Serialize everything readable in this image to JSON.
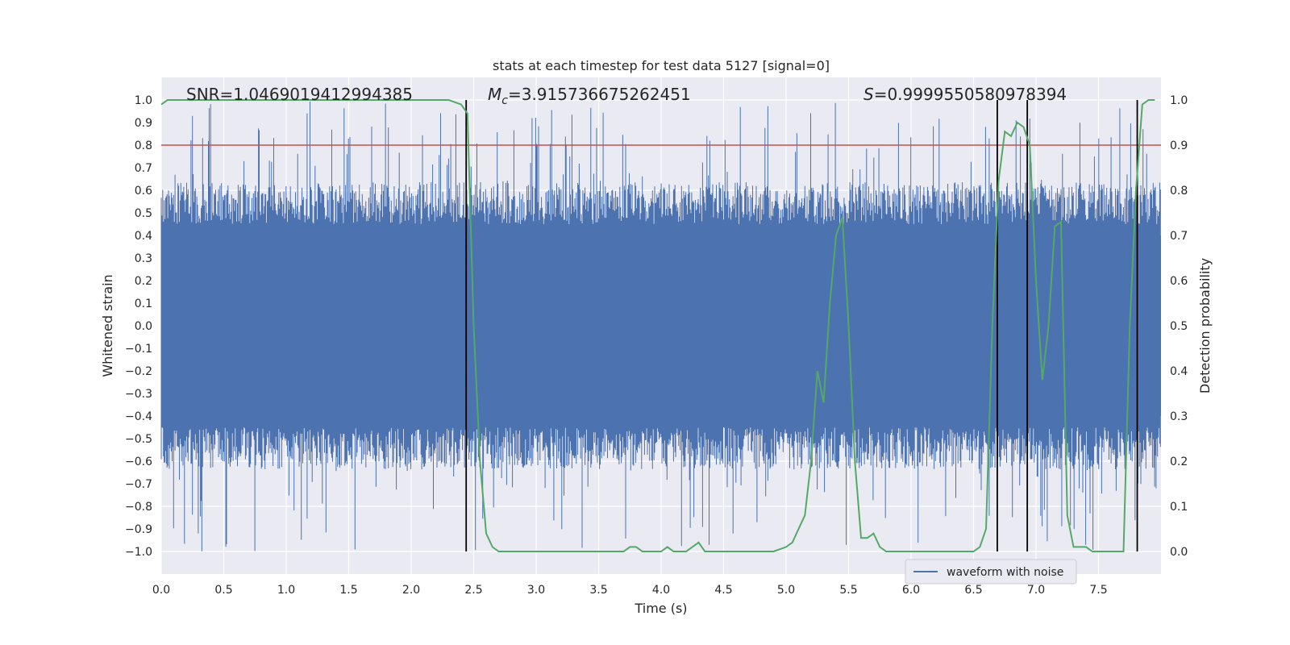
{
  "chart_data": {
    "type": "line",
    "title": "stats at each timestep for test data 5127 [signal=0]",
    "xlabel": "Time (s)",
    "ylabel_left": "Whitened strain",
    "ylabel_right": "Detection probability",
    "xlim": [
      0.0,
      8.0
    ],
    "ylim_left": [
      -1.1,
      1.1
    ],
    "ylim_right": [
      -0.05,
      1.05
    ],
    "grid": true,
    "x_ticks": [
      "0.0",
      "0.5",
      "1.0",
      "1.5",
      "2.0",
      "2.5",
      "3.0",
      "3.5",
      "4.0",
      "4.5",
      "5.0",
      "5.5",
      "6.0",
      "6.5",
      "7.0",
      "7.5"
    ],
    "y_ticks_left": [
      "−1.0",
      "−0.9",
      "−0.8",
      "−0.7",
      "−0.6",
      "−0.5",
      "−0.4",
      "−0.3",
      "−0.2",
      "−0.1",
      "0.0",
      "0.1",
      "0.2",
      "0.3",
      "0.4",
      "0.5",
      "0.6",
      "0.7",
      "0.8",
      "0.9",
      "1.0"
    ],
    "y_ticks_right": [
      "0.0",
      "0.1",
      "0.2",
      "0.3",
      "0.4",
      "0.5",
      "0.6",
      "0.7",
      "0.8",
      "0.9",
      "1.0"
    ],
    "annotations": {
      "snr": "SNR=1.0469019412994385",
      "mc_symbol": "M",
      "mc_sub": "c",
      "mc_value": "=3.915736675262451",
      "s_symbol": "S",
      "s_value": "=0.9999550580978394"
    },
    "legend": {
      "position": "bottom-right",
      "entries": [
        "waveform with noise"
      ]
    },
    "threshold_line": {
      "axis": "left",
      "value": 0.8,
      "color": "#c44e52"
    },
    "vertical_lines": [
      2.44,
      6.69,
      6.93,
      7.81
    ],
    "series": [
      {
        "name": "waveform with noise",
        "axis": "left",
        "color": "#4c72b0",
        "envelope": "noise band roughly ±0.6, spikes to ±1.0"
      },
      {
        "axis": "right",
        "color": "#55a868",
        "x": [
          0.0,
          0.05,
          0.1,
          0.5,
          1.0,
          1.5,
          2.0,
          2.3,
          2.4,
          2.45,
          2.5,
          2.55,
          2.6,
          2.65,
          2.7,
          2.75,
          2.8,
          2.9,
          3.0,
          3.2,
          3.4,
          3.6,
          3.7,
          3.75,
          3.8,
          3.85,
          3.9,
          4.0,
          4.05,
          4.1,
          4.2,
          4.3,
          4.35,
          4.4,
          4.5,
          4.6,
          4.7,
          4.8,
          4.9,
          5.0,
          5.05,
          5.1,
          5.15,
          5.2,
          5.25,
          5.3,
          5.35,
          5.4,
          5.45,
          5.5,
          5.55,
          5.6,
          5.65,
          5.7,
          5.75,
          5.8,
          5.85,
          5.9,
          6.0,
          6.2,
          6.4,
          6.5,
          6.55,
          6.6,
          6.65,
          6.7,
          6.75,
          6.8,
          6.85,
          6.9,
          6.95,
          7.0,
          7.05,
          7.1,
          7.15,
          7.2,
          7.25,
          7.3,
          7.35,
          7.4,
          7.45,
          7.5,
          7.55,
          7.6,
          7.65,
          7.7,
          7.75,
          7.8,
          7.85,
          7.9,
          7.95
        ],
        "values": [
          0.99,
          1.0,
          1.0,
          1.0,
          1.0,
          1.0,
          1.0,
          1.0,
          0.99,
          0.97,
          0.5,
          0.2,
          0.04,
          0.01,
          0.0,
          0.0,
          0.0,
          0.0,
          0.0,
          0.0,
          0.0,
          0.0,
          0.0,
          0.01,
          0.01,
          0.0,
          0.0,
          0.0,
          0.01,
          0.0,
          0.0,
          0.02,
          0.0,
          0.0,
          0.0,
          0.0,
          0.0,
          0.0,
          0.0,
          0.01,
          0.02,
          0.05,
          0.08,
          0.2,
          0.4,
          0.33,
          0.55,
          0.7,
          0.74,
          0.5,
          0.2,
          0.03,
          0.03,
          0.04,
          0.01,
          0.0,
          0.0,
          0.0,
          0.0,
          0.0,
          0.0,
          0.0,
          0.01,
          0.05,
          0.5,
          0.82,
          0.93,
          0.92,
          0.95,
          0.94,
          0.9,
          0.6,
          0.38,
          0.5,
          0.72,
          0.73,
          0.08,
          0.01,
          0.01,
          0.01,
          0.0,
          0.0,
          0.0,
          0.0,
          0.0,
          0.0,
          0.5,
          0.8,
          0.99,
          1.0,
          1.0
        ]
      }
    ]
  }
}
